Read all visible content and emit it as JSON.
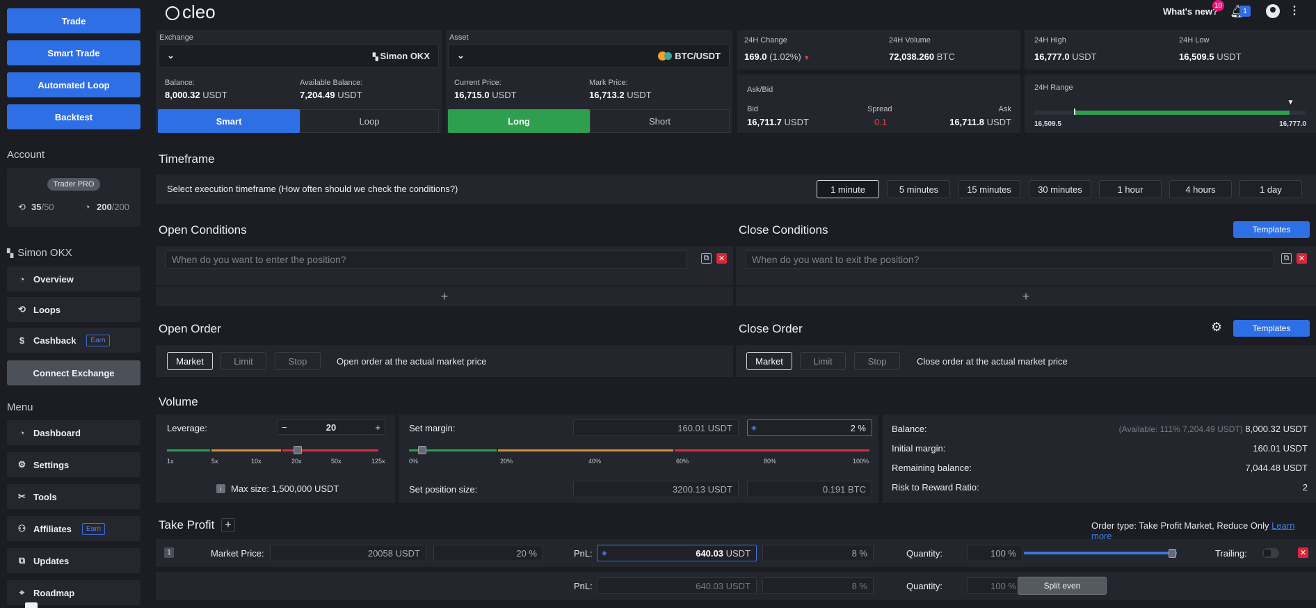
{
  "sidebar": {
    "buttons": [
      "Trade",
      "Smart Trade",
      "Automated Loop",
      "Backtest"
    ],
    "account_heading": "Account",
    "tier": "Trader PRO",
    "loops_used": "35",
    "loops_total": "/50",
    "speed_used": "200",
    "speed_total": "/200",
    "exchange_name": "Simon OKX",
    "exchange_items": [
      {
        "label": "Overview",
        "icon": "gauge-icon"
      },
      {
        "label": "Loops",
        "icon": "loop-icon"
      },
      {
        "label": "Cashback",
        "icon": "dollar-icon",
        "badge": "Earn"
      }
    ],
    "connect_label": "Connect Exchange",
    "menu_heading": "Menu",
    "menu_items": [
      {
        "label": "Dashboard",
        "icon": "gauge-icon"
      },
      {
        "label": "Settings",
        "icon": "gear-icon"
      },
      {
        "label": "Tools",
        "icon": "tools-icon"
      },
      {
        "label": "Affiliates",
        "icon": "affiliates-icon",
        "badge": "Earn"
      },
      {
        "label": "Updates",
        "icon": "external-link-icon"
      },
      {
        "label": "Roadmap",
        "icon": "map-icon"
      }
    ]
  },
  "topbar": {
    "logo": "cleo",
    "whats_new": "What's new?",
    "whats_new_count": "10",
    "notif_count": "1"
  },
  "exchange": {
    "label": "Exchange",
    "value": "Simon OKX",
    "balance_label": "Balance:",
    "balance": "8,000.32",
    "avail_label": "Available Balance:",
    "avail": "7,204.49",
    "unit": "USDT",
    "mode_smart": "Smart",
    "mode_loop": "Loop"
  },
  "asset": {
    "label": "Asset",
    "value": "BTC/USDT",
    "current_label": "Current Price:",
    "current": "16,715.0",
    "mark_label": "Mark Price:",
    "mark": "16,713.2",
    "unit": "USDT",
    "long": "Long",
    "short": "Short"
  },
  "stats": {
    "change_label": "24H Change",
    "change": "169.0",
    "change_pct": "(1.02%)",
    "volume_label": "24H Volume",
    "volume": "72,038.260",
    "volume_unit": "BTC",
    "high_label": "24H High",
    "high": "16,777.0",
    "low_label": "24H Low",
    "low": "16,509.5",
    "unit": "USDT",
    "askbid_label": "Ask/Bid",
    "bid_label": "Bid",
    "bid": "16,711.7",
    "spread_label": "Spread",
    "spread": "0.1",
    "ask_label": "Ask",
    "ask": "16,711.8",
    "range_label": "24H Range",
    "range_low": "16,509.5",
    "range_high": "16,777.0",
    "range_fill": 0.94,
    "range_marker": 0.945
  },
  "timeframe": {
    "title": "Timeframe",
    "prompt": "Select execution timeframe (How often should we check the conditions?)",
    "options": [
      "1 minute",
      "5 minutes",
      "15 minutes",
      "30 minutes",
      "1 hour",
      "4 hours",
      "1 day"
    ],
    "selected": "1 minute"
  },
  "open_conditions": {
    "title": "Open Conditions",
    "placeholder": "When do you want to enter the position?"
  },
  "close_conditions": {
    "title": "Close Conditions",
    "placeholder": "When do you want to exit the position?",
    "templates": "Templates"
  },
  "open_order": {
    "title": "Open Order",
    "types": [
      "Market",
      "Limit",
      "Stop"
    ],
    "desc": "Open order at the actual market price"
  },
  "close_order": {
    "title": "Close Order",
    "types": [
      "Market",
      "Limit",
      "Stop"
    ],
    "desc": "Close order at the actual market price",
    "templates": "Templates"
  },
  "volume": {
    "title": "Volume",
    "leverage_label": "Leverage:",
    "leverage": "20",
    "leverage_ticks": [
      "1x",
      "5x",
      "10x",
      "20x",
      "50x",
      "125x"
    ],
    "max_size_label": "Max size: 1,500,000 USDT",
    "margin_label": "Set margin:",
    "margin": "160.01 USDT",
    "margin_pct": "2 %",
    "margin_ticks": [
      "0%",
      "20%",
      "40%",
      "60%",
      "80%",
      "100%"
    ],
    "margin_level": 0.02,
    "position_label": "Set position size:",
    "position_usdt": "3200.13 USDT",
    "position_btc": "0.191 BTC",
    "balance_label": "Balance:",
    "balance_avail": "(Available: 111% 7,204.49 USDT)",
    "balance": "8,000.32 USDT",
    "initial_margin_label": "Initial margin:",
    "initial_margin": "160.01 USDT",
    "remaining_label": "Remaining balance:",
    "remaining": "7,044.48 USDT",
    "rr_label": "Risk to Reward Ratio:",
    "rr": "2"
  },
  "take_profit": {
    "title": "Take Profit",
    "order_type": "Order type: Take Profit Market, Reduce Only",
    "learn_more": "Learn more",
    "row_index": "1",
    "market_label": "Market Price:",
    "market_value": "20058 USDT",
    "market_pct": "20 %",
    "pnl_label": "PnL:",
    "pnl_value": "640.03",
    "pnl_unit": "USDT",
    "pnl_pct": "8 %",
    "qty_label": "Quantity:",
    "qty": "100 %",
    "trailing_label": "Trailing:",
    "row2_pnl": "640.03 USDT",
    "row2_pct": "8 %",
    "row2_qty": "100 %",
    "split_even": "Split even"
  },
  "colors": {
    "accent": "#2f6fe6",
    "long": "#2e9e4f",
    "down": "#e0454a"
  }
}
